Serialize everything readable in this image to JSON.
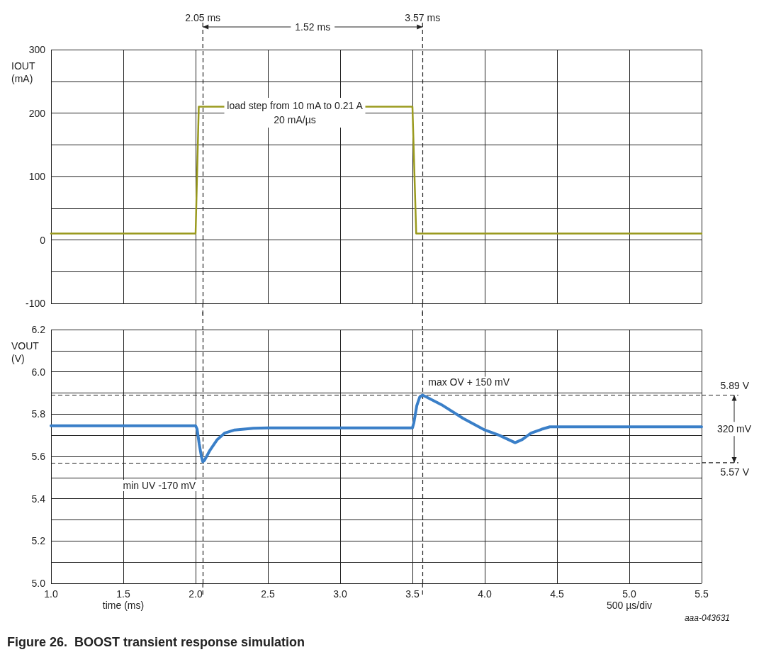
{
  "chart_data": [
    {
      "type": "line",
      "ylabel": "IOUT\n(mA)",
      "x": [
        1,
        2,
        2.022,
        3.5,
        3.526,
        5.5
      ],
      "series": [
        {
          "color": "#9a9a1e",
          "values": [
            10,
            10,
            210,
            210,
            10,
            10
          ]
        }
      ],
      "xlim": [
        1,
        5.5
      ],
      "xticks": [
        1,
        1.5,
        2,
        2.5,
        3,
        3.5,
        4,
        4.5,
        5,
        5.5
      ],
      "ylim": [
        -100,
        300
      ],
      "yticks": [
        -100,
        {
          "value": -50,
          "label": null
        },
        0,
        {
          "value": 50,
          "label": null
        },
        100,
        {
          "value": 150,
          "label": null
        },
        200,
        {
          "value": 250,
          "label": null
        },
        300
      ],
      "tick_labels": "y",
      "grid": true,
      "marker": "none",
      "line_style": "solid",
      "ref_lines": [
        {
          "axis": "x",
          "value": 2.05,
          "label": "2.05 ms",
          "line_style": "dashed",
          "color": "#222222"
        },
        {
          "axis": "x",
          "value": 3.57,
          "label": "3.57 ms",
          "line_style": "dashed",
          "color": "#222222"
        }
      ],
      "annotations": [
        "1.52 ms",
        "load step from 10 mA to 0.21 A\n20 mA/µs"
      ]
    },
    {
      "type": "line",
      "ylabel": "VOUT\n(V)",
      "xlabel": "time (ms)",
      "x": [
        1,
        2,
        2.01,
        2.025,
        2.04,
        2.05,
        2.06,
        2.1,
        2.15,
        2.2,
        2.27,
        2.4,
        2.5,
        3.5,
        3.51,
        3.53,
        3.55,
        3.57,
        3.6,
        3.7,
        3.85,
        4.0,
        4.1,
        4.21,
        4.26,
        4.32,
        4.4,
        4.45,
        5.5
      ],
      "series": [
        {
          "color": "#3a7fc8",
          "values": [
            5.745,
            5.745,
            5.73,
            5.66,
            5.6,
            5.575,
            5.58,
            5.63,
            5.68,
            5.71,
            5.725,
            5.733,
            5.735,
            5.735,
            5.76,
            5.84,
            5.88,
            5.89,
            5.88,
            5.845,
            5.78,
            5.725,
            5.7,
            5.665,
            5.68,
            5.71,
            5.73,
            5.74,
            5.74
          ]
        }
      ],
      "xlim": [
        1,
        5.5
      ],
      "xticks": [
        {
          "value": 1,
          "label": "1.0"
        },
        1.5,
        {
          "value": 2,
          "label": "2.0"
        },
        2.5,
        {
          "value": 3,
          "label": "3.0"
        },
        3.5,
        {
          "value": 4,
          "label": "4.0"
        },
        4.5,
        {
          "value": 5,
          "label": "5.0"
        },
        5.5
      ],
      "ylim": [
        5,
        6.2
      ],
      "yticks": [
        {
          "value": 5,
          "label": "5.0"
        },
        {
          "value": 5.1,
          "label": null
        },
        5.2,
        {
          "value": 5.3,
          "label": null
        },
        5.4,
        {
          "value": 5.5,
          "label": null
        },
        5.6,
        {
          "value": 5.7,
          "label": null
        },
        5.8,
        {
          "value": 5.9,
          "label": null
        },
        {
          "value": 6,
          "label": "6.0"
        },
        {
          "value": 6.1,
          "label": null
        },
        6.2
      ],
      "grid": true,
      "marker": "none",
      "line_style": "solid",
      "ref_lines": [
        {
          "axis": "y",
          "value": 5.89,
          "label": "5.89 V",
          "line_style": "dashed",
          "color": "#222222"
        },
        {
          "axis": "y",
          "value": 5.57,
          "label": "5.57 V",
          "line_style": "dashed",
          "color": "#222222"
        },
        {
          "axis": "x",
          "value": 2.05,
          "label": null,
          "line_style": "dashed",
          "color": "#222222"
        },
        {
          "axis": "x",
          "value": 3.57,
          "label": null,
          "line_style": "dashed",
          "color": "#222222"
        }
      ],
      "annotations": [
        {
          "text": "max OV + 150 mV",
          "x": 3.57,
          "y": 5.89
        },
        {
          "text": "min UV -170 mV",
          "x": 2.05,
          "y": 5.57
        },
        "320 mV",
        "500 µs/div",
        "aaa-043631",
        "Figure 26.  BOOST transient response simulation"
      ]
    }
  ]
}
